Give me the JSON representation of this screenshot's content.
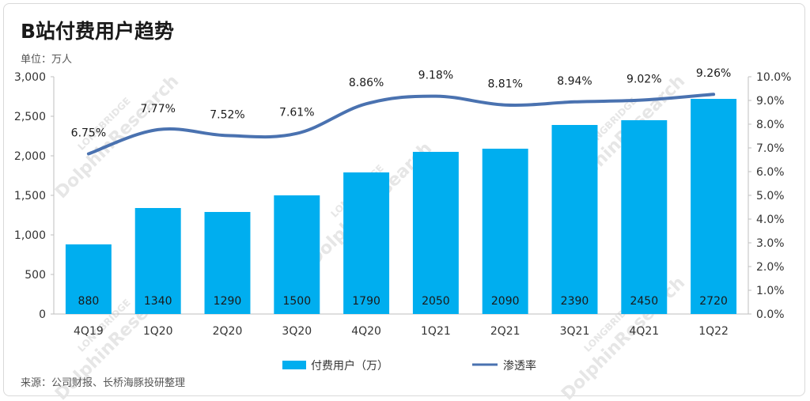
{
  "header": {
    "title": "B站付费用户趋势",
    "unit": "单位：万人"
  },
  "footer": {
    "source": "来源：公司财报、长桥海豚投研整理"
  },
  "watermark": {
    "line1": "LONGBRIDGE",
    "line2": "DolphinResearch"
  },
  "chart_data": {
    "type": "bar",
    "categories": [
      "4Q19",
      "1Q20",
      "2Q20",
      "3Q20",
      "4Q20",
      "1Q21",
      "2Q21",
      "3Q21",
      "4Q21",
      "1Q22"
    ],
    "series": [
      {
        "name": "付费用户（万）",
        "type": "bar",
        "axis": "left",
        "color": "#00aeef",
        "values": [
          880,
          1340,
          1290,
          1500,
          1790,
          2050,
          2090,
          2390,
          2450,
          2720
        ],
        "labels": [
          "880",
          "1340",
          "1290",
          "1500",
          "1790",
          "2050",
          "2090",
          "2390",
          "2450",
          "2720"
        ]
      },
      {
        "name": "渗透率",
        "type": "line",
        "axis": "right",
        "color": "#4a72b0",
        "values": [
          6.75,
          7.77,
          7.52,
          7.61,
          8.86,
          9.18,
          8.81,
          8.94,
          9.02,
          9.26
        ],
        "labels": [
          "6.75%",
          "7.77%",
          "7.52%",
          "7.61%",
          "8.86%",
          "9.18%",
          "8.81%",
          "8.94%",
          "9.02%",
          "9.26%"
        ]
      }
    ],
    "y_left": {
      "range": [
        0,
        3000
      ],
      "ticks": [
        0,
        500,
        1000,
        1500,
        2000,
        2500,
        3000
      ],
      "tick_labels": [
        "0",
        "500",
        "1,000",
        "1,500",
        "2,000",
        "2,500",
        "3,000"
      ]
    },
    "y_right": {
      "range": [
        0,
        10
      ],
      "ticks": [
        0,
        1,
        2,
        3,
        4,
        5,
        6,
        7,
        8,
        9,
        10
      ],
      "tick_labels": [
        "0.0%",
        "1.0%",
        "2.0%",
        "3.0%",
        "4.0%",
        "5.0%",
        "6.0%",
        "7.0%",
        "8.0%",
        "9.0%",
        "10.0%"
      ]
    },
    "grid": false,
    "legend_position": "bottom-center"
  }
}
